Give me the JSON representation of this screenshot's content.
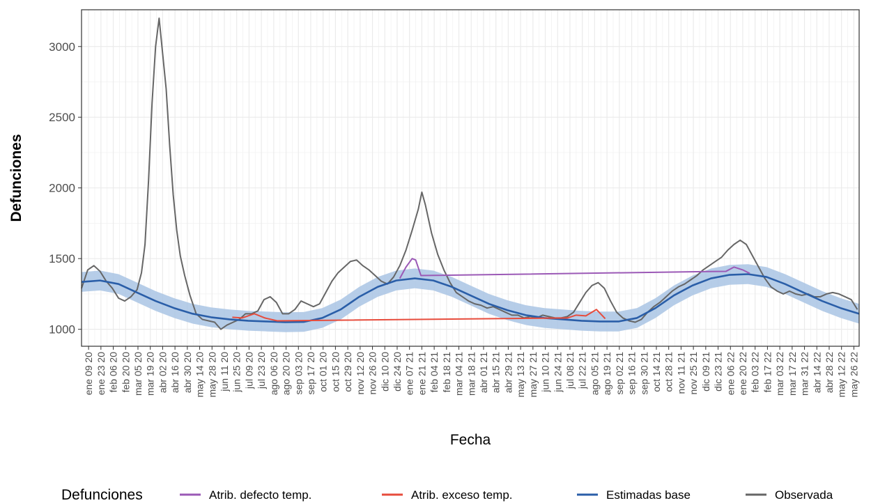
{
  "chart_data": {
    "type": "line",
    "xlabel": "Fecha",
    "ylabel": "Defunciones",
    "ylim": [
      880,
      3260
    ],
    "y_ticks": [
      1000,
      1500,
      2000,
      2500,
      3000
    ],
    "x_range": [
      "2020-01-01",
      "2022-06-01"
    ],
    "x_ticks": [
      "2020-01-09",
      "2020-01-23",
      "2020-02-06",
      "2020-02-20",
      "2020-03-05",
      "2020-03-19",
      "2020-04-02",
      "2020-04-16",
      "2020-04-30",
      "2020-05-14",
      "2020-05-28",
      "2020-06-11",
      "2020-06-25",
      "2020-07-09",
      "2020-07-23",
      "2020-08-06",
      "2020-08-20",
      "2020-09-03",
      "2020-09-17",
      "2020-10-01",
      "2020-10-15",
      "2020-10-29",
      "2020-11-12",
      "2020-11-26",
      "2020-12-10",
      "2020-12-24",
      "2021-01-07",
      "2021-01-21",
      "2021-02-04",
      "2021-02-18",
      "2021-03-04",
      "2021-03-18",
      "2021-04-01",
      "2021-04-15",
      "2021-04-29",
      "2021-05-13",
      "2021-05-27",
      "2021-06-10",
      "2021-06-24",
      "2021-07-08",
      "2021-07-22",
      "2021-08-05",
      "2021-08-19",
      "2021-09-02",
      "2021-09-16",
      "2021-09-30",
      "2021-10-14",
      "2021-10-28",
      "2021-11-11",
      "2021-11-25",
      "2021-12-09",
      "2021-12-23",
      "2022-01-06",
      "2022-01-20",
      "2022-02-03",
      "2022-02-17",
      "2022-03-03",
      "2022-03-17",
      "2022-03-31",
      "2022-04-14",
      "2022-04-28",
      "2022-05-12",
      "2022-05-26"
    ],
    "x_tick_labels": [
      "ene 09 20",
      "ene 23 20",
      "feb 06 20",
      "feb 20 20",
      "mar 05 20",
      "mar 19 20",
      "abr 02 20",
      "abr 16 20",
      "abr 30 20",
      "may 14 20",
      "may 28 20",
      "jun 11 20",
      "jun 25 20",
      "jul 09 20",
      "jul 23 20",
      "ago 06 20",
      "ago 20 20",
      "sep 03 20",
      "sep 17 20",
      "oct 01 20",
      "oct 15 20",
      "oct 29 20",
      "nov 12 20",
      "nov 26 20",
      "dic 10 20",
      "dic 24 20",
      "ene 07 21",
      "ene 21 21",
      "feb 04 21",
      "feb 18 21",
      "mar 04 21",
      "mar 18 21",
      "abr 01 21",
      "abr 15 21",
      "abr 29 21",
      "may 13 21",
      "may 27 21",
      "jun 10 21",
      "jun 24 21",
      "jul 08 21",
      "jul 22 21",
      "ago 05 21",
      "ago 19 21",
      "sep 02 21",
      "sep 16 21",
      "sep 30 21",
      "oct 14 21",
      "oct 28 21",
      "nov 11 21",
      "nov 25 21",
      "dic 09 21",
      "dic 23 21",
      "ene 06 22",
      "ene 20 22",
      "feb 03 22",
      "feb 17 22",
      "mar 03 22",
      "mar 17 22",
      "mar 31 22",
      "abr 14 22",
      "abr 28 22",
      "may 12 22",
      "may 26 22"
    ],
    "grid": true,
    "legend": {
      "title": "Defunciones",
      "position": "bottom",
      "entries": [
        {
          "label": "Atrib. defecto temp.",
          "color": "#9b59b6"
        },
        {
          "label": "Atrib. exceso temp.",
          "color": "#e74c3c"
        },
        {
          "label": "Estimadas base",
          "color": "#2a5ea8"
        },
        {
          "label": "Observada",
          "color": "#666666"
        }
      ]
    },
    "series": [
      {
        "name": "Observada",
        "color": "#666666",
        "points": [
          [
            "2020-01-01",
            1290
          ],
          [
            "2020-01-08",
            1420
          ],
          [
            "2020-01-15",
            1450
          ],
          [
            "2020-01-22",
            1410
          ],
          [
            "2020-01-29",
            1340
          ],
          [
            "2020-02-05",
            1290
          ],
          [
            "2020-02-12",
            1220
          ],
          [
            "2020-02-19",
            1200
          ],
          [
            "2020-02-26",
            1230
          ],
          [
            "2020-03-04",
            1280
          ],
          [
            "2020-03-09",
            1400
          ],
          [
            "2020-03-13",
            1600
          ],
          [
            "2020-03-17",
            2050
          ],
          [
            "2020-03-21",
            2600
          ],
          [
            "2020-03-25",
            3000
          ],
          [
            "2020-03-29",
            3200
          ],
          [
            "2020-04-02",
            2950
          ],
          [
            "2020-04-06",
            2700
          ],
          [
            "2020-04-10",
            2300
          ],
          [
            "2020-04-14",
            1950
          ],
          [
            "2020-04-18",
            1700
          ],
          [
            "2020-04-22",
            1520
          ],
          [
            "2020-04-27",
            1380
          ],
          [
            "2020-05-03",
            1240
          ],
          [
            "2020-05-10",
            1110
          ],
          [
            "2020-05-17",
            1070
          ],
          [
            "2020-05-24",
            1060
          ],
          [
            "2020-05-31",
            1050
          ],
          [
            "2020-06-07",
            1000
          ],
          [
            "2020-06-14",
            1030
          ],
          [
            "2020-06-21",
            1050
          ],
          [
            "2020-06-28",
            1070
          ],
          [
            "2020-07-05",
            1110
          ],
          [
            "2020-07-12",
            1110
          ],
          [
            "2020-07-19",
            1130
          ],
          [
            "2020-07-26",
            1210
          ],
          [
            "2020-08-02",
            1230
          ],
          [
            "2020-08-09",
            1190
          ],
          [
            "2020-08-16",
            1110
          ],
          [
            "2020-08-23",
            1110
          ],
          [
            "2020-08-30",
            1140
          ],
          [
            "2020-09-06",
            1200
          ],
          [
            "2020-09-13",
            1180
          ],
          [
            "2020-09-20",
            1160
          ],
          [
            "2020-09-27",
            1180
          ],
          [
            "2020-10-04",
            1260
          ],
          [
            "2020-10-11",
            1340
          ],
          [
            "2020-10-18",
            1400
          ],
          [
            "2020-10-25",
            1440
          ],
          [
            "2020-11-01",
            1480
          ],
          [
            "2020-11-08",
            1490
          ],
          [
            "2020-11-15",
            1450
          ],
          [
            "2020-11-22",
            1420
          ],
          [
            "2020-11-29",
            1380
          ],
          [
            "2020-12-06",
            1340
          ],
          [
            "2020-12-13",
            1320
          ],
          [
            "2020-12-20",
            1370
          ],
          [
            "2020-12-27",
            1450
          ],
          [
            "2021-01-03",
            1560
          ],
          [
            "2021-01-10",
            1700
          ],
          [
            "2021-01-17",
            1850
          ],
          [
            "2021-01-21",
            1970
          ],
          [
            "2021-01-25",
            1880
          ],
          [
            "2021-02-01",
            1680
          ],
          [
            "2021-02-08",
            1530
          ],
          [
            "2021-02-15",
            1420
          ],
          [
            "2021-02-22",
            1330
          ],
          [
            "2021-03-01",
            1260
          ],
          [
            "2021-03-08",
            1230
          ],
          [
            "2021-03-15",
            1200
          ],
          [
            "2021-03-22",
            1180
          ],
          [
            "2021-03-29",
            1170
          ],
          [
            "2021-04-05",
            1150
          ],
          [
            "2021-04-12",
            1160
          ],
          [
            "2021-04-19",
            1140
          ],
          [
            "2021-04-26",
            1120
          ],
          [
            "2021-05-03",
            1100
          ],
          [
            "2021-05-10",
            1100
          ],
          [
            "2021-05-17",
            1080
          ],
          [
            "2021-05-24",
            1090
          ],
          [
            "2021-05-31",
            1080
          ],
          [
            "2021-06-07",
            1100
          ],
          [
            "2021-06-14",
            1090
          ],
          [
            "2021-06-21",
            1080
          ],
          [
            "2021-06-28",
            1080
          ],
          [
            "2021-07-05",
            1090
          ],
          [
            "2021-07-12",
            1120
          ],
          [
            "2021-07-19",
            1190
          ],
          [
            "2021-07-26",
            1260
          ],
          [
            "2021-08-02",
            1310
          ],
          [
            "2021-08-09",
            1330
          ],
          [
            "2021-08-16",
            1290
          ],
          [
            "2021-08-23",
            1200
          ],
          [
            "2021-08-30",
            1120
          ],
          [
            "2021-09-06",
            1080
          ],
          [
            "2021-09-13",
            1060
          ],
          [
            "2021-09-20",
            1050
          ],
          [
            "2021-09-27",
            1070
          ],
          [
            "2021-10-04",
            1120
          ],
          [
            "2021-10-11",
            1160
          ],
          [
            "2021-10-18",
            1190
          ],
          [
            "2021-10-25",
            1230
          ],
          [
            "2021-11-01",
            1270
          ],
          [
            "2021-11-08",
            1300
          ],
          [
            "2021-11-15",
            1320
          ],
          [
            "2021-11-22",
            1350
          ],
          [
            "2021-11-29",
            1380
          ],
          [
            "2021-12-06",
            1420
          ],
          [
            "2021-12-13",
            1450
          ],
          [
            "2021-12-20",
            1480
          ],
          [
            "2021-12-27",
            1510
          ],
          [
            "2022-01-03",
            1560
          ],
          [
            "2022-01-10",
            1600
          ],
          [
            "2022-01-17",
            1630
          ],
          [
            "2022-01-24",
            1600
          ],
          [
            "2022-01-31",
            1520
          ],
          [
            "2022-02-07",
            1440
          ],
          [
            "2022-02-14",
            1360
          ],
          [
            "2022-02-21",
            1300
          ],
          [
            "2022-02-28",
            1270
          ],
          [
            "2022-03-07",
            1250
          ],
          [
            "2022-03-14",
            1270
          ],
          [
            "2022-03-21",
            1250
          ],
          [
            "2022-03-28",
            1240
          ],
          [
            "2022-04-04",
            1250
          ],
          [
            "2022-04-11",
            1230
          ],
          [
            "2022-04-18",
            1230
          ],
          [
            "2022-04-25",
            1250
          ],
          [
            "2022-05-02",
            1260
          ],
          [
            "2022-05-09",
            1250
          ],
          [
            "2022-05-16",
            1230
          ],
          [
            "2022-05-23",
            1210
          ],
          [
            "2022-05-30",
            1140
          ]
        ]
      },
      {
        "name": "Estimadas base",
        "color": "#2a5ea8",
        "points": [
          [
            "2020-01-01",
            1335
          ],
          [
            "2020-01-22",
            1345
          ],
          [
            "2020-02-12",
            1320
          ],
          [
            "2020-03-04",
            1260
          ],
          [
            "2020-03-25",
            1200
          ],
          [
            "2020-04-15",
            1150
          ],
          [
            "2020-05-06",
            1110
          ],
          [
            "2020-05-27",
            1085
          ],
          [
            "2020-06-17",
            1070
          ],
          [
            "2020-07-08",
            1060
          ],
          [
            "2020-07-29",
            1055
          ],
          [
            "2020-08-19",
            1050
          ],
          [
            "2020-09-09",
            1052
          ],
          [
            "2020-09-30",
            1080
          ],
          [
            "2020-10-21",
            1140
          ],
          [
            "2020-11-11",
            1230
          ],
          [
            "2020-12-02",
            1300
          ],
          [
            "2020-12-23",
            1345
          ],
          [
            "2021-01-13",
            1360
          ],
          [
            "2021-02-03",
            1345
          ],
          [
            "2021-02-24",
            1300
          ],
          [
            "2021-03-17",
            1240
          ],
          [
            "2021-04-07",
            1180
          ],
          [
            "2021-04-28",
            1135
          ],
          [
            "2021-05-19",
            1100
          ],
          [
            "2021-06-09",
            1080
          ],
          [
            "2021-06-30",
            1070
          ],
          [
            "2021-07-21",
            1060
          ],
          [
            "2021-08-11",
            1055
          ],
          [
            "2021-09-01",
            1055
          ],
          [
            "2021-09-22",
            1080
          ],
          [
            "2021-10-13",
            1150
          ],
          [
            "2021-11-03",
            1240
          ],
          [
            "2021-11-24",
            1310
          ],
          [
            "2021-12-15",
            1360
          ],
          [
            "2022-01-05",
            1385
          ],
          [
            "2022-01-26",
            1390
          ],
          [
            "2022-02-16",
            1370
          ],
          [
            "2022-03-09",
            1320
          ],
          [
            "2022-03-30",
            1260
          ],
          [
            "2022-04-20",
            1200
          ],
          [
            "2022-05-11",
            1150
          ],
          [
            "2022-06-01",
            1110
          ]
        ],
        "band_halfwidth": 70
      },
      {
        "name": "Atrib. defecto temp.",
        "color": "#9b59b6",
        "points": [
          [
            "2020-12-27",
            1360
          ],
          [
            "2021-01-03",
            1440
          ],
          [
            "2021-01-10",
            1500
          ],
          [
            "2021-01-14",
            1490
          ],
          [
            "2021-01-20",
            1380
          ],
          [
            "2022-01-01",
            1410
          ],
          [
            "2022-01-10",
            1440
          ],
          [
            "2022-01-20",
            1420
          ],
          [
            "2022-01-28",
            1395
          ]
        ]
      },
      {
        "name": "Atrib. exceso temp.",
        "color": "#e74c3c",
        "points": [
          [
            "2020-06-20",
            1085
          ],
          [
            "2020-07-01",
            1080
          ],
          [
            "2020-07-15",
            1110
          ],
          [
            "2020-07-27",
            1080
          ],
          [
            "2020-08-10",
            1060
          ],
          [
            "2021-07-05",
            1080
          ],
          [
            "2021-07-15",
            1100
          ],
          [
            "2021-07-26",
            1095
          ],
          [
            "2021-08-07",
            1140
          ],
          [
            "2021-08-17",
            1075
          ]
        ]
      }
    ]
  }
}
